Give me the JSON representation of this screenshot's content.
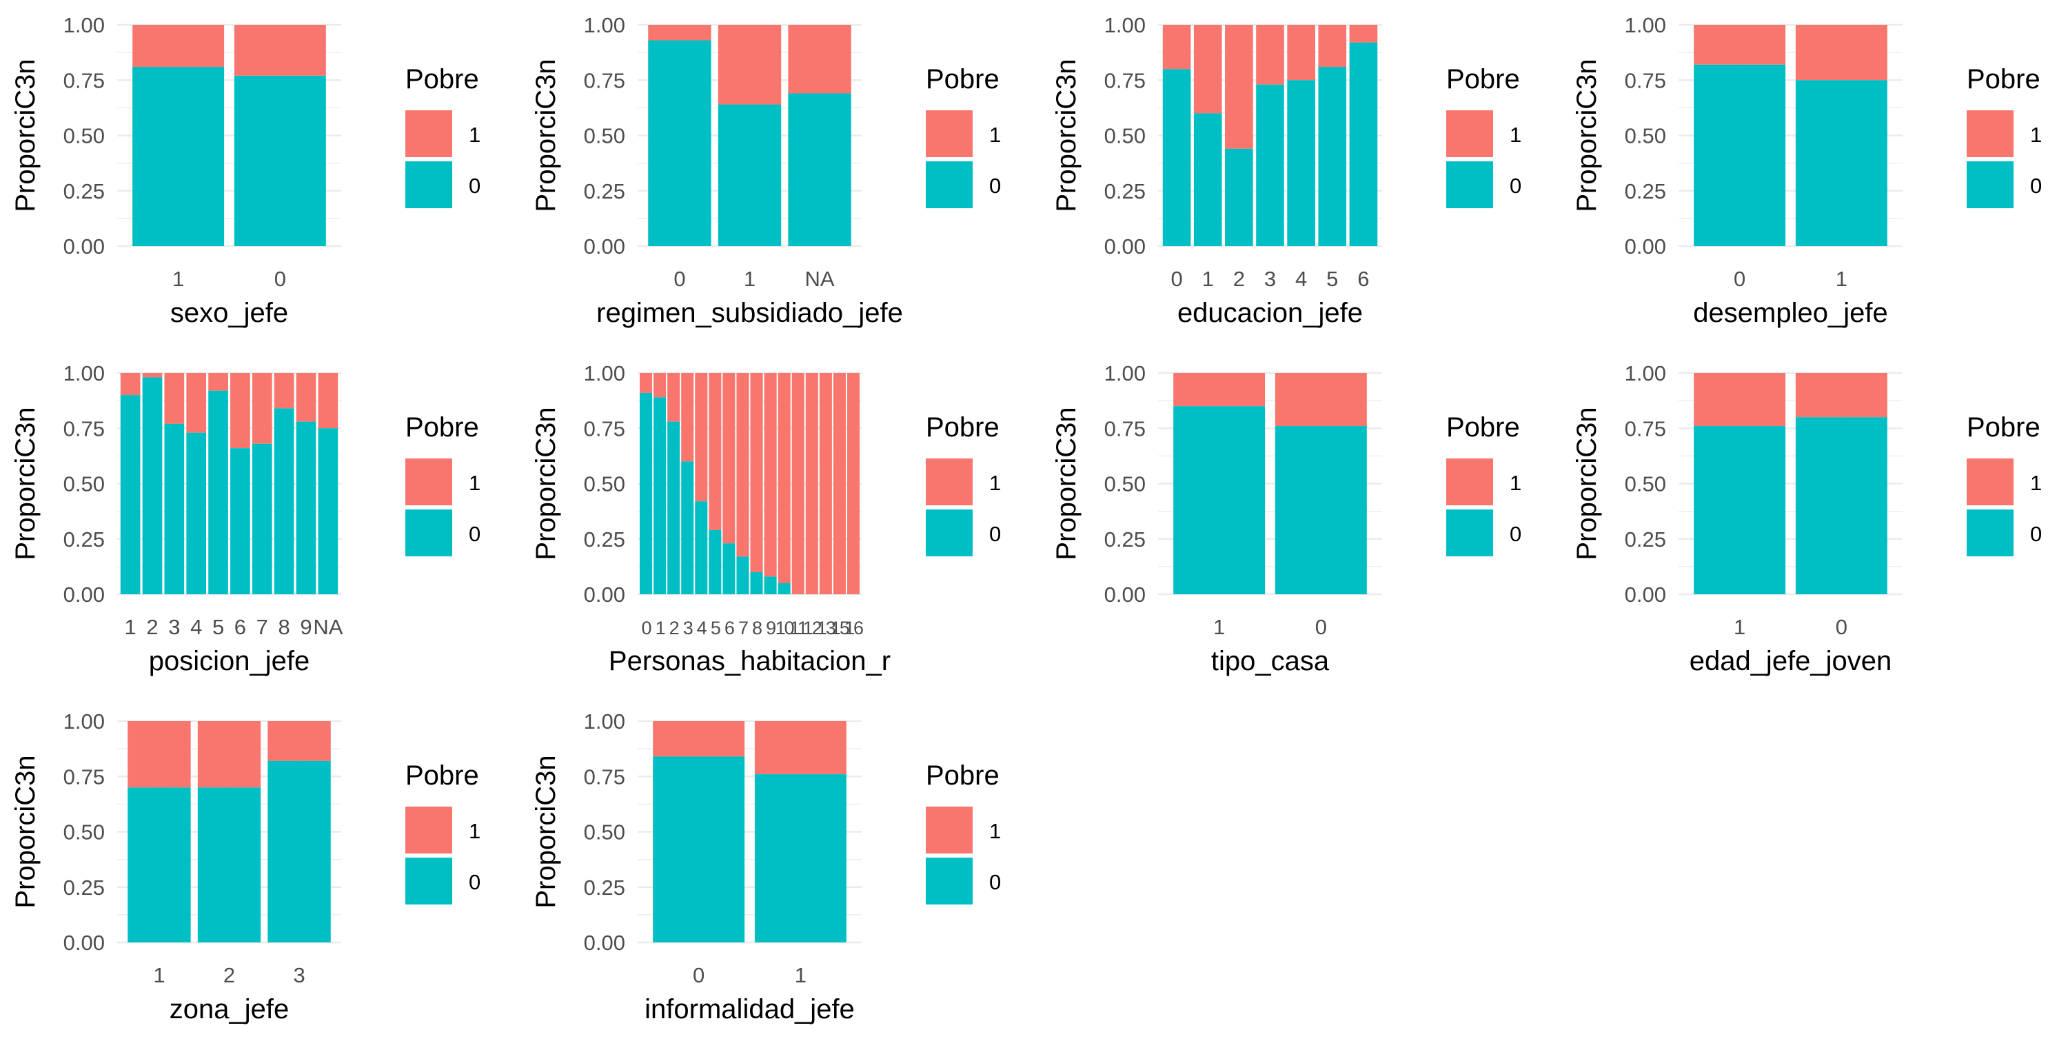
{
  "colors": {
    "poor": "#F8766D",
    "notpoor": "#00BFC4",
    "grid": "#EBEBEB"
  },
  "chart_data": [
    {
      "type": "bar",
      "stacked": true,
      "xlabel": "sexo_jefe",
      "ylabel": "ProporciC3n",
      "ylim": [
        0,
        1
      ],
      "yticks": [
        "0.00",
        "0.25",
        "0.50",
        "0.75",
        "1.00"
      ],
      "legend_title": "Pobre",
      "legend": [
        "1",
        "0"
      ],
      "legend_position": "right",
      "categories": [
        "1",
        "0"
      ],
      "series": [
        {
          "name": "0",
          "values": [
            0.81,
            0.77
          ]
        },
        {
          "name": "1",
          "values": [
            0.19,
            0.23
          ]
        }
      ]
    },
    {
      "type": "bar",
      "stacked": true,
      "xlabel": "regimen_subsidiado_jefe",
      "ylabel": "ProporciC3n",
      "ylim": [
        0,
        1
      ],
      "yticks": [
        "0.00",
        "0.25",
        "0.50",
        "0.75",
        "1.00"
      ],
      "legend_title": "Pobre",
      "legend": [
        "1",
        "0"
      ],
      "legend_position": "right",
      "categories": [
        "0",
        "1",
        "NA"
      ],
      "series": [
        {
          "name": "0",
          "values": [
            0.93,
            0.64,
            0.69
          ]
        },
        {
          "name": "1",
          "values": [
            0.07,
            0.36,
            0.31
          ]
        }
      ]
    },
    {
      "type": "bar",
      "stacked": true,
      "xlabel": "educacion_jefe",
      "ylabel": "ProporciC3n",
      "ylim": [
        0,
        1
      ],
      "yticks": [
        "0.00",
        "0.25",
        "0.50",
        "0.75",
        "1.00"
      ],
      "legend_title": "Pobre",
      "legend": [
        "1",
        "0"
      ],
      "legend_position": "right",
      "categories": [
        "0",
        "1",
        "2",
        "3",
        "4",
        "5",
        "6"
      ],
      "series": [
        {
          "name": "0",
          "values": [
            0.8,
            0.6,
            0.44,
            0.73,
            0.75,
            0.81,
            0.92
          ]
        },
        {
          "name": "1",
          "values": [
            0.2,
            0.4,
            0.56,
            0.27,
            0.25,
            0.19,
            0.08
          ]
        }
      ]
    },
    {
      "type": "bar",
      "stacked": true,
      "xlabel": "desempleo_jefe",
      "ylabel": "ProporciC3n",
      "ylim": [
        0,
        1
      ],
      "yticks": [
        "0.00",
        "0.25",
        "0.50",
        "0.75",
        "1.00"
      ],
      "legend_title": "Pobre",
      "legend": [
        "1",
        "0"
      ],
      "legend_position": "right",
      "categories": [
        "0",
        "1"
      ],
      "series": [
        {
          "name": "0",
          "values": [
            0.82,
            0.75
          ]
        },
        {
          "name": "1",
          "values": [
            0.18,
            0.25
          ]
        }
      ]
    },
    {
      "type": "bar",
      "stacked": true,
      "xlabel": "posicion_jefe",
      "ylabel": "ProporciC3n",
      "ylim": [
        0,
        1
      ],
      "yticks": [
        "0.00",
        "0.25",
        "0.50",
        "0.75",
        "1.00"
      ],
      "legend_title": "Pobre",
      "legend": [
        "1",
        "0"
      ],
      "legend_position": "right",
      "categories": [
        "1",
        "2",
        "3",
        "4",
        "5",
        "6",
        "7",
        "8",
        "9",
        "NA"
      ],
      "series": [
        {
          "name": "0",
          "values": [
            0.9,
            0.98,
            0.77,
            0.73,
            0.92,
            0.66,
            0.68,
            0.84,
            0.78,
            0.75
          ]
        },
        {
          "name": "1",
          "values": [
            0.1,
            0.02,
            0.23,
            0.27,
            0.08,
            0.34,
            0.32,
            0.16,
            0.22,
            0.25
          ]
        }
      ]
    },
    {
      "type": "bar",
      "stacked": true,
      "xlabel": "Personas_habitacion_r",
      "ylabel": "ProporciC3n",
      "ylim": [
        0,
        1
      ],
      "yticks": [
        "0.00",
        "0.25",
        "0.50",
        "0.75",
        "1.00"
      ],
      "legend_title": "Pobre",
      "legend": [
        "1",
        "0"
      ],
      "legend_position": "right",
      "categories": [
        "0",
        "1",
        "2",
        "3",
        "4",
        "5",
        "6",
        "7",
        "8",
        "9",
        "10",
        "11",
        "12",
        "13",
        "15",
        "16"
      ],
      "tick_labels": [
        "0",
        "1",
        "2",
        "3",
        "4",
        "5",
        "6",
        "7",
        "8",
        "9",
        "10",
        "11",
        "12",
        "13",
        "15",
        "16"
      ],
      "series": [
        {
          "name": "0",
          "values": [
            0.91,
            0.89,
            0.78,
            0.6,
            0.42,
            0.29,
            0.23,
            0.17,
            0.1,
            0.08,
            0.05,
            0.0,
            0.0,
            0.0,
            0.0,
            0.0
          ]
        },
        {
          "name": "1",
          "values": [
            0.09,
            0.11,
            0.22,
            0.4,
            0.58,
            0.71,
            0.77,
            0.83,
            0.9,
            0.92,
            0.95,
            1.0,
            1.0,
            1.0,
            1.0,
            1.0
          ]
        }
      ]
    },
    {
      "type": "bar",
      "stacked": true,
      "xlabel": "tipo_casa",
      "ylabel": "ProporciC3n",
      "ylim": [
        0,
        1
      ],
      "yticks": [
        "0.00",
        "0.25",
        "0.50",
        "0.75",
        "1.00"
      ],
      "legend_title": "Pobre",
      "legend": [
        "1",
        "0"
      ],
      "legend_position": "right",
      "categories": [
        "1",
        "0"
      ],
      "series": [
        {
          "name": "0",
          "values": [
            0.85,
            0.76
          ]
        },
        {
          "name": "1",
          "values": [
            0.15,
            0.24
          ]
        }
      ]
    },
    {
      "type": "bar",
      "stacked": true,
      "xlabel": "edad_jefe_joven",
      "ylabel": "ProporciC3n",
      "ylim": [
        0,
        1
      ],
      "yticks": [
        "0.00",
        "0.25",
        "0.50",
        "0.75",
        "1.00"
      ],
      "legend_title": "Pobre",
      "legend": [
        "1",
        "0"
      ],
      "legend_position": "right",
      "categories": [
        "1",
        "0"
      ],
      "series": [
        {
          "name": "0",
          "values": [
            0.76,
            0.8
          ]
        },
        {
          "name": "1",
          "values": [
            0.24,
            0.2
          ]
        }
      ]
    },
    {
      "type": "bar",
      "stacked": true,
      "xlabel": "zona_jefe",
      "ylabel": "ProporciC3n",
      "ylim": [
        0,
        1
      ],
      "yticks": [
        "0.00",
        "0.25",
        "0.50",
        "0.75",
        "1.00"
      ],
      "legend_title": "Pobre",
      "legend": [
        "1",
        "0"
      ],
      "legend_position": "right",
      "categories": [
        "1",
        "2",
        "3"
      ],
      "series": [
        {
          "name": "0",
          "values": [
            0.7,
            0.7,
            0.82
          ]
        },
        {
          "name": "1",
          "values": [
            0.3,
            0.3,
            0.18
          ]
        }
      ]
    },
    {
      "type": "bar",
      "stacked": true,
      "xlabel": "informalidad_jefe",
      "ylabel": "ProporciC3n",
      "ylim": [
        0,
        1
      ],
      "yticks": [
        "0.00",
        "0.25",
        "0.50",
        "0.75",
        "1.00"
      ],
      "legend_title": "Pobre",
      "legend": [
        "1",
        "0"
      ],
      "legend_position": "right",
      "categories": [
        "0",
        "1"
      ],
      "series": [
        {
          "name": "0",
          "values": [
            0.84,
            0.76
          ]
        },
        {
          "name": "1",
          "values": [
            0.16,
            0.24
          ]
        }
      ]
    }
  ]
}
